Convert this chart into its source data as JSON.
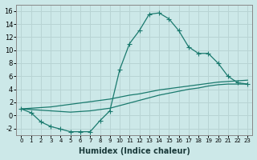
{
  "xlabel": "Humidex (Indice chaleur)",
  "bg_color": "#cce8e8",
  "grid_color": "#b8d4d4",
  "line_color": "#1a7a6e",
  "ylim": [
    -3,
    17
  ],
  "xlim": [
    -0.5,
    23.5
  ],
  "yticks": [
    -2,
    0,
    2,
    4,
    6,
    8,
    10,
    12,
    14,
    16
  ],
  "xticks": [
    0,
    1,
    2,
    3,
    4,
    5,
    6,
    7,
    8,
    9,
    10,
    11,
    12,
    13,
    14,
    15,
    16,
    17,
    18,
    19,
    20,
    21,
    22,
    23
  ],
  "line1_x": [
    0,
    1,
    2,
    3,
    4,
    5,
    6,
    7,
    8,
    9,
    10,
    11,
    12,
    13,
    14,
    15,
    16,
    17,
    18,
    19,
    20,
    21,
    22,
    23
  ],
  "line1_y": [
    1.0,
    0.4,
    -1.0,
    -1.7,
    -2.1,
    -2.5,
    -2.5,
    -2.5,
    -0.8,
    0.7,
    7.0,
    11.0,
    13.0,
    15.5,
    15.7,
    14.8,
    13.0,
    10.5,
    9.5,
    9.5,
    8.0,
    6.0,
    5.0,
    4.8
  ],
  "line2_x": [
    0,
    1,
    2,
    3,
    4,
    5,
    6,
    7,
    8,
    9,
    10,
    11,
    12,
    13,
    14,
    15,
    16,
    17,
    18,
    19,
    20,
    21,
    22,
    23
  ],
  "line2_y": [
    1.0,
    1.1,
    1.2,
    1.3,
    1.5,
    1.7,
    1.9,
    2.1,
    2.3,
    2.5,
    2.8,
    3.1,
    3.3,
    3.6,
    3.9,
    4.1,
    4.3,
    4.5,
    4.7,
    4.9,
    5.1,
    5.2,
    5.3,
    5.4
  ],
  "line3_x": [
    0,
    1,
    2,
    3,
    4,
    5,
    6,
    7,
    8,
    9,
    10,
    11,
    12,
    13,
    14,
    15,
    16,
    17,
    18,
    19,
    20,
    21,
    22,
    23
  ],
  "line3_y": [
    1.0,
    0.9,
    0.8,
    0.7,
    0.6,
    0.5,
    0.6,
    0.7,
    0.9,
    1.1,
    1.5,
    1.9,
    2.3,
    2.7,
    3.1,
    3.4,
    3.7,
    4.0,
    4.2,
    4.5,
    4.7,
    4.8,
    4.8,
    4.8
  ]
}
